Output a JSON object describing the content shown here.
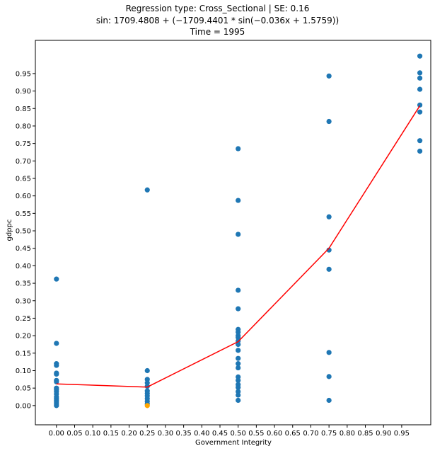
{
  "chart_data": {
    "type": "scatter",
    "title_lines": [
      "Regression type: Cross_Sectional | SE: 0.16",
      "sin: 1709.4808 + (−1709.4401 * sin(−0.036x + 1.5759))",
      "Time = 1995"
    ],
    "xlabel": "Government Integrity",
    "ylabel": "gdppc",
    "xlim": [
      -0.058,
      1.03
    ],
    "ylim": [
      -0.055,
      1.045
    ],
    "x_ticks": [
      "0.00",
      "0.05",
      "0.10",
      "0.15",
      "0.20",
      "0.25",
      "0.30",
      "0.35",
      "0.40",
      "0.45",
      "0.50",
      "0.55",
      "0.60",
      "0.65",
      "0.70",
      "0.75",
      "0.80",
      "0.85",
      "0.90",
      "0.95"
    ],
    "y_ticks": [
      "0.00",
      "0.05",
      "0.10",
      "0.15",
      "0.20",
      "0.25",
      "0.30",
      "0.35",
      "0.40",
      "0.45",
      "0.50",
      "0.55",
      "0.60",
      "0.65",
      "0.70",
      "0.75",
      "0.80",
      "0.85",
      "0.90",
      "0.95"
    ],
    "grid": false,
    "point_color": "#1f77b4",
    "highlight_color": "#ffa500",
    "line_color": "#ff0000",
    "points": [
      {
        "x": 0.0,
        "y": 0.362
      },
      {
        "x": 0.0,
        "y": 0.178
      },
      {
        "x": 0.0,
        "y": 0.12
      },
      {
        "x": 0.0,
        "y": 0.115
      },
      {
        "x": 0.0,
        "y": 0.093
      },
      {
        "x": 0.0,
        "y": 0.09
      },
      {
        "x": 0.0,
        "y": 0.072
      },
      {
        "x": 0.0,
        "y": 0.068
      },
      {
        "x": 0.0,
        "y": 0.05
      },
      {
        "x": 0.0,
        "y": 0.045
      },
      {
        "x": 0.0,
        "y": 0.04
      },
      {
        "x": 0.0,
        "y": 0.033
      },
      {
        "x": 0.0,
        "y": 0.025
      },
      {
        "x": 0.0,
        "y": 0.02
      },
      {
        "x": 0.0,
        "y": 0.015
      },
      {
        "x": 0.0,
        "y": 0.01
      },
      {
        "x": 0.0,
        "y": 0.005
      },
      {
        "x": 0.0,
        "y": 0.0
      },
      {
        "x": 0.25,
        "y": 0.617
      },
      {
        "x": 0.25,
        "y": 0.1
      },
      {
        "x": 0.25,
        "y": 0.075
      },
      {
        "x": 0.25,
        "y": 0.065
      },
      {
        "x": 0.25,
        "y": 0.055
      },
      {
        "x": 0.25,
        "y": 0.042
      },
      {
        "x": 0.25,
        "y": 0.035
      },
      {
        "x": 0.25,
        "y": 0.028
      },
      {
        "x": 0.25,
        "y": 0.02
      },
      {
        "x": 0.25,
        "y": 0.012
      },
      {
        "x": 0.25,
        "y": 0.005
      },
      {
        "x": 0.5,
        "y": 0.735
      },
      {
        "x": 0.5,
        "y": 0.587
      },
      {
        "x": 0.5,
        "y": 0.49
      },
      {
        "x": 0.5,
        "y": 0.33
      },
      {
        "x": 0.5,
        "y": 0.277
      },
      {
        "x": 0.5,
        "y": 0.218
      },
      {
        "x": 0.5,
        "y": 0.21
      },
      {
        "x": 0.5,
        "y": 0.2
      },
      {
        "x": 0.5,
        "y": 0.195
      },
      {
        "x": 0.5,
        "y": 0.185
      },
      {
        "x": 0.5,
        "y": 0.175
      },
      {
        "x": 0.5,
        "y": 0.158
      },
      {
        "x": 0.5,
        "y": 0.135
      },
      {
        "x": 0.5,
        "y": 0.12
      },
      {
        "x": 0.5,
        "y": 0.108
      },
      {
        "x": 0.5,
        "y": 0.082
      },
      {
        "x": 0.5,
        "y": 0.072
      },
      {
        "x": 0.5,
        "y": 0.06
      },
      {
        "x": 0.5,
        "y": 0.052
      },
      {
        "x": 0.5,
        "y": 0.04
      },
      {
        "x": 0.5,
        "y": 0.03
      },
      {
        "x": 0.5,
        "y": 0.015
      },
      {
        "x": 0.75,
        "y": 0.943
      },
      {
        "x": 0.75,
        "y": 0.813
      },
      {
        "x": 0.75,
        "y": 0.54
      },
      {
        "x": 0.75,
        "y": 0.445
      },
      {
        "x": 0.75,
        "y": 0.39
      },
      {
        "x": 0.75,
        "y": 0.152
      },
      {
        "x": 0.75,
        "y": 0.083
      },
      {
        "x": 0.75,
        "y": 0.015
      },
      {
        "x": 1.0,
        "y": 1.0
      },
      {
        "x": 1.0,
        "y": 0.952
      },
      {
        "x": 1.0,
        "y": 0.937
      },
      {
        "x": 1.0,
        "y": 0.905
      },
      {
        "x": 1.0,
        "y": 0.86
      },
      {
        "x": 1.0,
        "y": 0.84
      },
      {
        "x": 1.0,
        "y": 0.758
      },
      {
        "x": 1.0,
        "y": 0.728
      }
    ],
    "highlight_points": [
      {
        "x": 0.25,
        "y": 0.0
      }
    ],
    "fit_line": [
      {
        "x": 0.0,
        "y": 0.062
      },
      {
        "x": 0.25,
        "y": 0.053
      },
      {
        "x": 0.5,
        "y": 0.183
      },
      {
        "x": 0.75,
        "y": 0.45
      },
      {
        "x": 1.0,
        "y": 0.858
      }
    ]
  }
}
